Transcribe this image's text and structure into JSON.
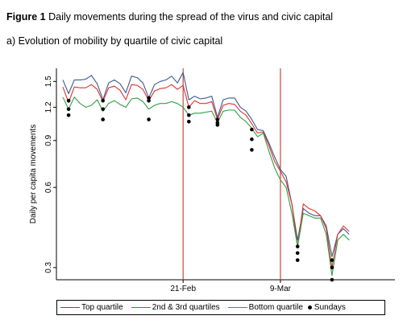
{
  "figure": {
    "label": "Figure 1",
    "title": "Daily movements during the spread of the virus and civic capital",
    "subtitle": "a) Evolution of mobility by quartile of civic capital"
  },
  "chart_data": {
    "type": "line",
    "ylabel": "Daily per capita movements",
    "yticks": [
      0.3,
      0.6,
      0.9,
      1.2,
      1.5
    ],
    "ytick_labels": [
      "0.3",
      "0.6",
      "0.9",
      "1.2",
      "1.5"
    ],
    "ylim": [
      0.27,
      1.68
    ],
    "x_range": [
      1,
      59
    ],
    "xticks": [
      {
        "x": 22,
        "label": "21-Feb"
      },
      {
        "x": 39,
        "label": "9-Mar"
      }
    ],
    "vlines": [
      22,
      39
    ],
    "vline_color": "#c0392b",
    "grid": false,
    "legend_position": "bottom",
    "series": [
      {
        "name": "Top quartile",
        "color": "#3b5a8c",
        "style": "line",
        "points": [
          [
            1,
            1.52
          ],
          [
            2,
            1.35
          ],
          [
            3,
            1.52
          ],
          [
            4,
            1.52
          ],
          [
            5,
            1.53
          ],
          [
            6,
            1.58
          ],
          [
            7,
            1.47
          ],
          [
            8,
            1.28
          ],
          [
            9,
            1.48
          ],
          [
            10,
            1.52
          ],
          [
            11,
            1.47
          ],
          [
            12,
            1.36
          ],
          [
            13,
            1.57
          ],
          [
            14,
            1.55
          ],
          [
            15,
            1.48
          ],
          [
            16,
            1.3
          ],
          [
            17,
            1.46
          ],
          [
            18,
            1.5
          ],
          [
            19,
            1.52
          ],
          [
            20,
            1.57
          ],
          [
            21,
            1.48
          ],
          [
            22,
            1.62
          ],
          [
            23,
            1.28
          ],
          [
            24,
            1.32
          ],
          [
            25,
            1.29
          ],
          [
            26,
            1.3
          ],
          [
            27,
            1.32
          ],
          [
            28,
            1.1
          ],
          [
            29,
            1.28
          ],
          [
            30,
            1.3
          ],
          [
            31,
            1.3
          ],
          [
            32,
            1.2
          ],
          [
            33,
            1.16
          ],
          [
            34,
            1.08
          ],
          [
            35,
            0.99
          ],
          [
            36,
            0.98
          ],
          [
            37,
            0.88
          ],
          [
            38,
            0.78
          ],
          [
            39,
            0.7
          ],
          [
            40,
            0.66
          ],
          [
            41,
            0.52
          ],
          [
            42,
            0.38
          ],
          [
            43,
            0.5
          ],
          [
            44,
            0.48
          ],
          [
            45,
            0.47
          ],
          [
            46,
            0.47
          ],
          [
            47,
            0.43
          ],
          [
            48,
            0.33
          ],
          [
            49,
            0.4
          ],
          [
            50,
            0.42
          ],
          [
            51,
            0.4
          ]
        ]
      },
      {
        "name": "2nd & 3rd quartiles",
        "color": "#e03131",
        "style": "line",
        "points": [
          [
            1,
            1.43
          ],
          [
            2,
            1.25
          ],
          [
            3,
            1.43
          ],
          [
            4,
            1.42
          ],
          [
            5,
            1.42
          ],
          [
            6,
            1.46
          ],
          [
            7,
            1.4
          ],
          [
            8,
            1.26
          ],
          [
            9,
            1.42
          ],
          [
            10,
            1.44
          ],
          [
            11,
            1.39
          ],
          [
            12,
            1.28
          ],
          [
            13,
            1.46
          ],
          [
            14,
            1.45
          ],
          [
            15,
            1.4
          ],
          [
            16,
            1.27
          ],
          [
            17,
            1.38
          ],
          [
            18,
            1.41
          ],
          [
            19,
            1.42
          ],
          [
            20,
            1.46
          ],
          [
            21,
            1.4
          ],
          [
            22,
            1.45
          ],
          [
            23,
            1.2
          ],
          [
            24,
            1.27
          ],
          [
            25,
            1.24
          ],
          [
            26,
            1.24
          ],
          [
            27,
            1.26
          ],
          [
            28,
            1.08
          ],
          [
            29,
            1.22
          ],
          [
            30,
            1.24
          ],
          [
            31,
            1.23
          ],
          [
            32,
            1.16
          ],
          [
            33,
            1.12
          ],
          [
            34,
            1.04
          ],
          [
            35,
            0.96
          ],
          [
            36,
            0.97
          ],
          [
            37,
            0.86
          ],
          [
            38,
            0.75
          ],
          [
            39,
            0.69
          ],
          [
            40,
            0.63
          ],
          [
            41,
            0.52
          ],
          [
            42,
            0.36
          ],
          [
            43,
            0.52
          ],
          [
            44,
            0.5
          ],
          [
            45,
            0.49
          ],
          [
            46,
            0.47
          ],
          [
            47,
            0.42
          ],
          [
            48,
            0.3
          ],
          [
            49,
            0.4
          ],
          [
            50,
            0.43
          ],
          [
            51,
            0.41
          ]
        ]
      },
      {
        "name": "Bottom quartile",
        "color": "#2f9e44",
        "style": "line",
        "points": [
          [
            1,
            1.31
          ],
          [
            2,
            1.18
          ],
          [
            3,
            1.31
          ],
          [
            4,
            1.24
          ],
          [
            5,
            1.2
          ],
          [
            6,
            1.22
          ],
          [
            7,
            1.28
          ],
          [
            8,
            1.16
          ],
          [
            9,
            1.24
          ],
          [
            10,
            1.27
          ],
          [
            11,
            1.23
          ],
          [
            12,
            1.2
          ],
          [
            13,
            1.29
          ],
          [
            14,
            1.3
          ],
          [
            15,
            1.26
          ],
          [
            16,
            1.18
          ],
          [
            17,
            1.22
          ],
          [
            18,
            1.24
          ],
          [
            19,
            1.24
          ],
          [
            20,
            1.26
          ],
          [
            21,
            1.24
          ],
          [
            22,
            1.2
          ],
          [
            23,
            1.12
          ],
          [
            24,
            1.14
          ],
          [
            25,
            1.14
          ],
          [
            26,
            1.15
          ],
          [
            27,
            1.16
          ],
          [
            28,
            1.05
          ],
          [
            29,
            1.16
          ],
          [
            30,
            1.17
          ],
          [
            31,
            1.17
          ],
          [
            32,
            1.1
          ],
          [
            33,
            1.06
          ],
          [
            34,
            1.0
          ],
          [
            35,
            0.93
          ],
          [
            36,
            0.96
          ],
          [
            37,
            0.82
          ],
          [
            38,
            0.71
          ],
          [
            39,
            0.64
          ],
          [
            40,
            0.6
          ],
          [
            41,
            0.48
          ],
          [
            42,
            0.36
          ],
          [
            43,
            0.48
          ],
          [
            44,
            0.47
          ],
          [
            45,
            0.46
          ],
          [
            46,
            0.46
          ],
          [
            47,
            0.4
          ],
          [
            48,
            0.28
          ],
          [
            49,
            0.38
          ],
          [
            50,
            0.4
          ],
          [
            51,
            0.38
          ]
        ]
      },
      {
        "name": "Sundays",
        "color": "#000000",
        "style": "dots",
        "points": [
          [
            2,
            1.27
          ],
          [
            2,
            1.18
          ],
          [
            2,
            1.12
          ],
          [
            8,
            1.27
          ],
          [
            8,
            1.18
          ],
          [
            8,
            1.08
          ],
          [
            16,
            1.3
          ],
          [
            16,
            1.27
          ],
          [
            16,
            1.08
          ],
          [
            23,
            1.2
          ],
          [
            23,
            1.12
          ],
          [
            23,
            1.06
          ],
          [
            28,
            1.08
          ],
          [
            28,
            1.05
          ],
          [
            28,
            1.03
          ],
          [
            34,
            0.99
          ],
          [
            34,
            0.91
          ],
          [
            34,
            0.83
          ],
          [
            42,
            0.36
          ],
          [
            42,
            0.34
          ],
          [
            42,
            0.32
          ],
          [
            48,
            0.32
          ],
          [
            48,
            0.3
          ],
          [
            48,
            0.27
          ]
        ]
      }
    ]
  }
}
